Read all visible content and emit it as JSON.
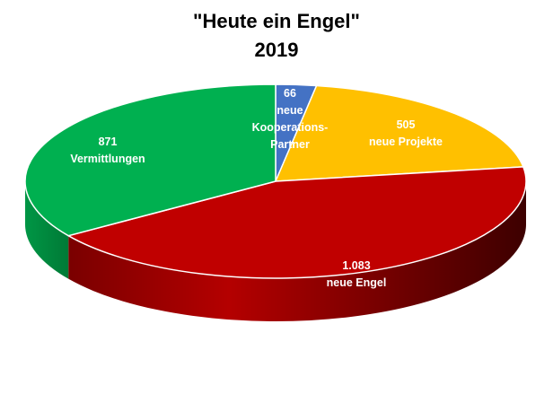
{
  "chart_data": {
    "type": "pie",
    "title": "\"Heute ein Engel\"",
    "subtitle": "2019",
    "three_d": true,
    "slices": [
      {
        "value": 66,
        "value_label": "66",
        "label_lines": [
          "neue",
          "Kooperations-",
          "Partner"
        ],
        "color": "#4472C4"
      },
      {
        "value": 505,
        "value_label": "505",
        "label_lines": [
          "neue Projekte"
        ],
        "color": "#FFC000"
      },
      {
        "value": 1083,
        "value_label": "1.083",
        "label_lines": [
          "neue Engel"
        ],
        "color": "#C00000"
      },
      {
        "value": 871,
        "value_label": "871",
        "label_lines": [
          "Vermittlungen"
        ],
        "color": "#00B050"
      }
    ]
  }
}
